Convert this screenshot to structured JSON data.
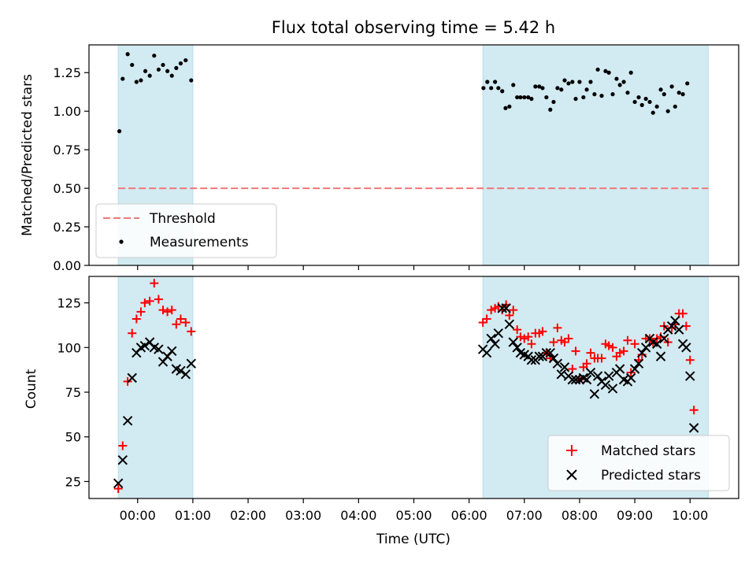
{
  "chart_data": [
    {
      "type": "scatter",
      "title": "Flux total observing time = 5.42 h",
      "xlabel": "",
      "ylabel": "Matched/Predicted stars",
      "xlim": [
        -0.88,
        10.88
      ],
      "ylim": [
        0.0,
        1.43
      ],
      "yticks": [
        0.0,
        0.25,
        0.5,
        0.75,
        1.0,
        1.25
      ],
      "ytick_labels": [
        "0.00",
        "0.25",
        "0.50",
        "0.75",
        "1.00",
        "1.25"
      ],
      "legend_position": "lower-left",
      "shaded_intervals": [
        [
          -0.35,
          1.0
        ],
        [
          6.25,
          10.33
        ]
      ],
      "threshold": {
        "name": "Threshold",
        "value": 0.5,
        "color": "#f07878"
      },
      "series": [
        {
          "name": "Measurements",
          "color": "#000000",
          "points": [
            [
              -0.33,
              0.87
            ],
            [
              -0.27,
              1.21
            ],
            [
              -0.18,
              1.37
            ],
            [
              -0.1,
              1.3
            ],
            [
              -0.02,
              1.19
            ],
            [
              0.06,
              1.2
            ],
            [
              0.14,
              1.26
            ],
            [
              0.22,
              1.23
            ],
            [
              0.3,
              1.36
            ],
            [
              0.38,
              1.27
            ],
            [
              0.46,
              1.3
            ],
            [
              0.54,
              1.26
            ],
            [
              0.62,
              1.23
            ],
            [
              0.7,
              1.28
            ],
            [
              0.78,
              1.31
            ],
            [
              0.87,
              1.33
            ],
            [
              0.97,
              1.2
            ],
            [
              6.26,
              1.15
            ],
            [
              6.33,
              1.19
            ],
            [
              6.4,
              1.15
            ],
            [
              6.47,
              1.19
            ],
            [
              6.53,
              1.15
            ],
            [
              6.6,
              1.13
            ],
            [
              6.66,
              1.02
            ],
            [
              6.73,
              1.03
            ],
            [
              6.8,
              1.17
            ],
            [
              6.87,
              1.09
            ],
            [
              6.93,
              1.09
            ],
            [
              7.0,
              1.09
            ],
            [
              7.07,
              1.09
            ],
            [
              7.13,
              1.08
            ],
            [
              7.2,
              1.16
            ],
            [
              7.27,
              1.16
            ],
            [
              7.33,
              1.15
            ],
            [
              7.4,
              1.09
            ],
            [
              7.47,
              1.01
            ],
            [
              7.53,
              1.06
            ],
            [
              7.6,
              1.15
            ],
            [
              7.67,
              1.14
            ],
            [
              7.73,
              1.2
            ],
            [
              7.8,
              1.18
            ],
            [
              7.87,
              1.19
            ],
            [
              7.93,
              1.08
            ],
            [
              8.0,
              1.19
            ],
            [
              8.07,
              1.09
            ],
            [
              8.13,
              1.14
            ],
            [
              8.2,
              1.19
            ],
            [
              8.27,
              1.11
            ],
            [
              8.33,
              1.27
            ],
            [
              8.4,
              1.1
            ],
            [
              8.47,
              1.26
            ],
            [
              8.53,
              1.25
            ],
            [
              8.6,
              1.11
            ],
            [
              8.67,
              1.21
            ],
            [
              8.73,
              1.17
            ],
            [
              8.8,
              1.19
            ],
            [
              8.87,
              1.12
            ],
            [
              8.93,
              1.25
            ],
            [
              9.0,
              1.06
            ],
            [
              9.07,
              1.09
            ],
            [
              9.13,
              1.04
            ],
            [
              9.2,
              1.08
            ],
            [
              9.27,
              1.06
            ],
            [
              9.33,
              0.99
            ],
            [
              9.4,
              1.03
            ],
            [
              9.47,
              1.14
            ],
            [
              9.53,
              1.11
            ],
            [
              9.6,
              1.0
            ],
            [
              9.67,
              1.16
            ],
            [
              9.73,
              1.03
            ],
            [
              9.8,
              1.12
            ],
            [
              9.87,
              1.11
            ],
            [
              9.95,
              1.18
            ]
          ]
        }
      ]
    },
    {
      "type": "scatter",
      "title": "",
      "xlabel": "Time (UTC)",
      "ylabel": "Count",
      "xlim": [
        -0.88,
        10.88
      ],
      "ylim": [
        15.5,
        139.8
      ],
      "yticks": [
        25,
        50,
        75,
        100,
        125
      ],
      "ytick_labels": [
        "25",
        "50",
        "75",
        "100",
        "125"
      ],
      "xticks": [
        0,
        1,
        2,
        3,
        4,
        5,
        6,
        7,
        8,
        9,
        10
      ],
      "xtick_labels": [
        "00:00",
        "01:00",
        "02:00",
        "03:00",
        "04:00",
        "05:00",
        "06:00",
        "07:00",
        "08:00",
        "09:00",
        "10:00"
      ],
      "legend_position": "lower-right",
      "shaded_intervals": [
        [
          -0.35,
          1.0
        ],
        [
          6.25,
          10.33
        ]
      ],
      "series": [
        {
          "name": "Matched stars",
          "marker": "plus",
          "color": "#ff0000",
          "points": [
            [
              -0.35,
              21
            ],
            [
              -0.27,
              45
            ],
            [
              -0.18,
              81
            ],
            [
              -0.1,
              108
            ],
            [
              -0.02,
              116
            ],
            [
              0.06,
              120
            ],
            [
              0.13,
              125
            ],
            [
              0.22,
              126
            ],
            [
              0.3,
              136
            ],
            [
              0.38,
              127
            ],
            [
              0.46,
              121
            ],
            [
              0.54,
              120
            ],
            [
              0.62,
              121
            ],
            [
              0.7,
              113
            ],
            [
              0.78,
              116
            ],
            [
              0.87,
              114
            ],
            [
              0.97,
              109
            ],
            [
              6.25,
              114
            ],
            [
              6.32,
              116
            ],
            [
              6.4,
              121
            ],
            [
              6.47,
              122
            ],
            [
              6.53,
              123
            ],
            [
              6.6,
              121
            ],
            [
              6.67,
              124
            ],
            [
              6.73,
              118
            ],
            [
              6.8,
              121
            ],
            [
              6.87,
              110
            ],
            [
              6.93,
              106
            ],
            [
              7.0,
              105
            ],
            [
              7.07,
              106
            ],
            [
              7.13,
              102
            ],
            [
              7.2,
              108
            ],
            [
              7.27,
              108
            ],
            [
              7.33,
              109
            ],
            [
              7.4,
              97
            ],
            [
              7.47,
              94
            ],
            [
              7.53,
              103
            ],
            [
              7.6,
              111
            ],
            [
              7.67,
              104
            ],
            [
              7.73,
              103
            ],
            [
              7.8,
              105
            ],
            [
              7.87,
              88
            ],
            [
              7.93,
              98
            ],
            [
              8.0,
              82
            ],
            [
              8.07,
              89
            ],
            [
              8.13,
              91
            ],
            [
              8.2,
              97
            ],
            [
              8.27,
              94
            ],
            [
              8.33,
              94
            ],
            [
              8.4,
              94
            ],
            [
              8.47,
              102
            ],
            [
              8.53,
              101
            ],
            [
              8.6,
              100
            ],
            [
              8.67,
              95
            ],
            [
              8.73,
              97
            ],
            [
              8.8,
              98
            ],
            [
              8.87,
              104
            ],
            [
              8.93,
              86
            ],
            [
              9.0,
              102
            ],
            [
              9.07,
              93
            ],
            [
              9.13,
              96
            ],
            [
              9.2,
              105
            ],
            [
              9.27,
              105
            ],
            [
              9.33,
              103
            ],
            [
              9.4,
              105
            ],
            [
              9.47,
              106
            ],
            [
              9.53,
              112
            ],
            [
              9.6,
              103
            ],
            [
              9.67,
              111
            ],
            [
              9.73,
              113
            ],
            [
              9.8,
              119
            ],
            [
              9.87,
              119
            ],
            [
              9.93,
              112
            ],
            [
              10.0,
              93
            ],
            [
              10.07,
              65
            ]
          ]
        },
        {
          "name": "Predicted stars",
          "marker": "x",
          "color": "#000000",
          "points": [
            [
              -0.35,
              24
            ],
            [
              -0.27,
              37
            ],
            [
              -0.18,
              59
            ],
            [
              -0.1,
              83
            ],
            [
              -0.02,
              97
            ],
            [
              0.06,
              100
            ],
            [
              0.13,
              101
            ],
            [
              0.22,
              103
            ],
            [
              0.3,
              100
            ],
            [
              0.38,
              99
            ],
            [
              0.46,
              92
            ],
            [
              0.54,
              95
            ],
            [
              0.62,
              98
            ],
            [
              0.7,
              88
            ],
            [
              0.78,
              87
            ],
            [
              0.87,
              85
            ],
            [
              0.97,
              91
            ],
            [
              6.25,
              99
            ],
            [
              6.32,
              97
            ],
            [
              6.4,
              105
            ],
            [
              6.47,
              102
            ],
            [
              6.53,
              108
            ],
            [
              6.6,
              122
            ],
            [
              6.67,
              122
            ],
            [
              6.73,
              113
            ],
            [
              6.8,
              103
            ],
            [
              6.87,
              100
            ],
            [
              6.93,
              97
            ],
            [
              7.0,
              96
            ],
            [
              7.07,
              95
            ],
            [
              7.13,
              93
            ],
            [
              7.2,
              93
            ],
            [
              7.27,
              95
            ],
            [
              7.33,
              95
            ],
            [
              7.4,
              97
            ],
            [
              7.47,
              97
            ],
            [
              7.53,
              94
            ],
            [
              7.6,
              91
            ],
            [
              7.67,
              85
            ],
            [
              7.73,
              89
            ],
            [
              7.8,
              84
            ],
            [
              7.87,
              82
            ],
            [
              7.93,
              82
            ],
            [
              8.0,
              82
            ],
            [
              8.07,
              83
            ],
            [
              8.13,
              82
            ],
            [
              8.2,
              86
            ],
            [
              8.27,
              74
            ],
            [
              8.33,
              84
            ],
            [
              8.4,
              81
            ],
            [
              8.47,
              79
            ],
            [
              8.53,
              84
            ],
            [
              8.6,
              77
            ],
            [
              8.67,
              86
            ],
            [
              8.73,
              88
            ],
            [
              8.8,
              82
            ],
            [
              8.87,
              81
            ],
            [
              8.93,
              83
            ],
            [
              9.0,
              88
            ],
            [
              9.07,
              91
            ],
            [
              9.13,
              97
            ],
            [
              9.2,
              100
            ],
            [
              9.27,
              105
            ],
            [
              9.33,
              103
            ],
            [
              9.4,
              102
            ],
            [
              9.47,
              95
            ],
            [
              9.53,
              105
            ],
            [
              9.6,
              110
            ],
            [
              9.67,
              112
            ],
            [
              9.73,
              115
            ],
            [
              9.8,
              110
            ],
            [
              9.87,
              102
            ],
            [
              9.93,
              100
            ],
            [
              10.0,
              84
            ],
            [
              10.07,
              55
            ]
          ]
        }
      ]
    }
  ]
}
